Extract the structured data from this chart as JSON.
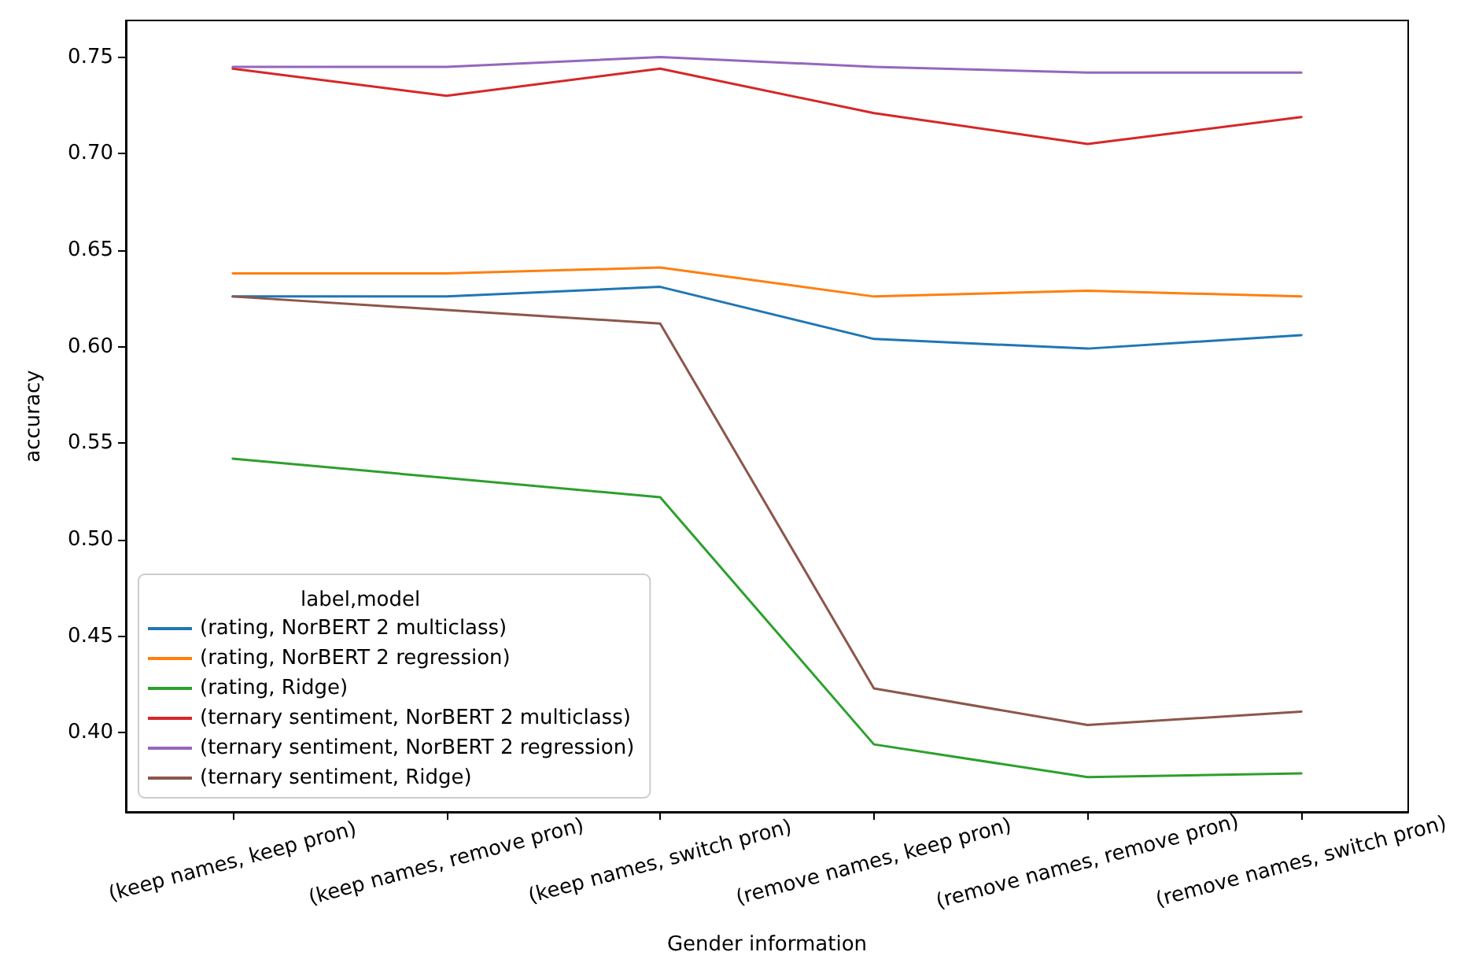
{
  "chart_data": {
    "type": "line",
    "xlabel": "Gender information",
    "ylabel": "accuracy",
    "legend_title": "label,model",
    "legend": "bottom left",
    "marker": "none",
    "categories": [
      "(keep names, keep pron)",
      "(keep names, remove pron)",
      "(keep names, switch pron)",
      "(remove names, keep pron)",
      "(remove names, remove pron)",
      "(remove names, switch pron)"
    ],
    "ylim": [
      0.359,
      0.769
    ],
    "yticks": [
      {
        "value": 0.4,
        "label": "0.40"
      },
      {
        "value": 0.45,
        "label": "0.45"
      },
      {
        "value": 0.5,
        "label": "0.50"
      },
      {
        "value": 0.55,
        "label": "0.55"
      },
      {
        "value": 0.6,
        "label": "0.60"
      },
      {
        "value": 0.65,
        "label": "0.65"
      },
      {
        "value": 0.7,
        "label": "0.70"
      },
      {
        "value": 0.75,
        "label": "0.75"
      }
    ],
    "series": [
      {
        "name": "(rating, NorBERT 2 multiclass)",
        "color": "#1f77b4",
        "values": [
          0.626,
          0.626,
          0.631,
          0.604,
          0.599,
          0.606
        ]
      },
      {
        "name": "(rating, NorBERT 2 regression)",
        "color": "#ff7f0e",
        "values": [
          0.638,
          0.638,
          0.641,
          0.626,
          0.629,
          0.626
        ]
      },
      {
        "name": "(rating, Ridge)",
        "color": "#2ca02c",
        "values": [
          0.542,
          0.532,
          0.522,
          0.394,
          0.377,
          0.379
        ]
      },
      {
        "name": "(ternary sentiment, NorBERT 2 multiclass)",
        "color": "#d62728",
        "values": [
          0.744,
          0.73,
          0.744,
          0.721,
          0.705,
          0.719
        ]
      },
      {
        "name": "(ternary sentiment, NorBERT 2 regression)",
        "color": "#9467bd",
        "values": [
          0.745,
          0.745,
          0.75,
          0.745,
          0.742,
          0.742
        ]
      },
      {
        "name": "(ternary sentiment, Ridge)",
        "color": "#8c564b",
        "values": [
          0.626,
          0.619,
          0.612,
          0.423,
          0.404,
          0.411
        ]
      }
    ]
  }
}
